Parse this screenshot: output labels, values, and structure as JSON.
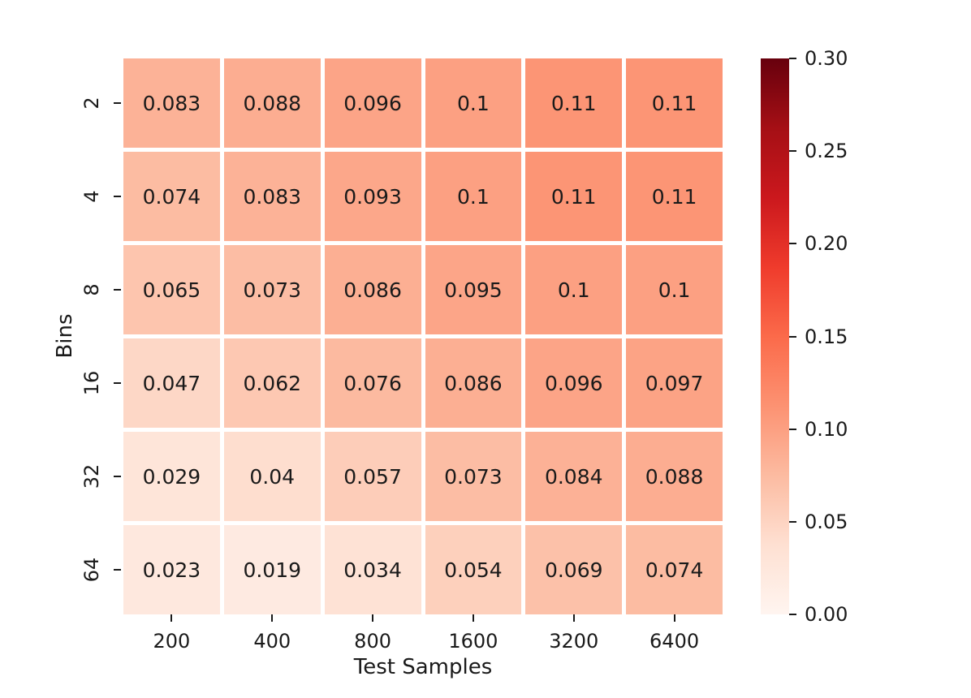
{
  "chart_data": {
    "type": "heatmap",
    "xlabel": "Test Samples",
    "ylabel": "Bins",
    "x_categories": [
      "200",
      "400",
      "800",
      "1600",
      "3200",
      "6400"
    ],
    "y_categories": [
      "2",
      "4",
      "8",
      "16",
      "32",
      "64"
    ],
    "values": [
      [
        0.083,
        0.088,
        0.096,
        0.1,
        0.11,
        0.11
      ],
      [
        0.074,
        0.083,
        0.093,
        0.1,
        0.11,
        0.11
      ],
      [
        0.065,
        0.073,
        0.086,
        0.095,
        0.1,
        0.1
      ],
      [
        0.047,
        0.062,
        0.076,
        0.086,
        0.096,
        0.097
      ],
      [
        0.029,
        0.04,
        0.057,
        0.073,
        0.084,
        0.088
      ],
      [
        0.023,
        0.019,
        0.034,
        0.054,
        0.069,
        0.074
      ]
    ],
    "cell_labels": [
      [
        "0.083",
        "0.088",
        "0.096",
        "0.1",
        "0.11",
        "0.11"
      ],
      [
        "0.074",
        "0.083",
        "0.093",
        "0.1",
        "0.11",
        "0.11"
      ],
      [
        "0.065",
        "0.073",
        "0.086",
        "0.095",
        "0.1",
        "0.1"
      ],
      [
        "0.047",
        "0.062",
        "0.076",
        "0.086",
        "0.096",
        "0.097"
      ],
      [
        "0.029",
        "0.04",
        "0.057",
        "0.073",
        "0.084",
        "0.088"
      ],
      [
        "0.023",
        "0.019",
        "0.034",
        "0.054",
        "0.069",
        "0.074"
      ]
    ],
    "vmin": 0.0,
    "vmax": 0.3,
    "colormap_name": "Reds",
    "colormap_stops": [
      "#fff5f0",
      "#fee0d2",
      "#fcbba1",
      "#fc9272",
      "#fb6a4a",
      "#ef3b2c",
      "#cb181d",
      "#a50f15",
      "#67000d"
    ],
    "colorbar_ticks": [
      "0.30",
      "0.25",
      "0.20",
      "0.15",
      "0.10",
      "0.05",
      "0.00"
    ],
    "annotation_text_color": "#1a1a1a",
    "grid_line_color": "#ffffff",
    "background_color": "#ffffff",
    "legend_position": "right-colorbar",
    "grid": "off"
  }
}
